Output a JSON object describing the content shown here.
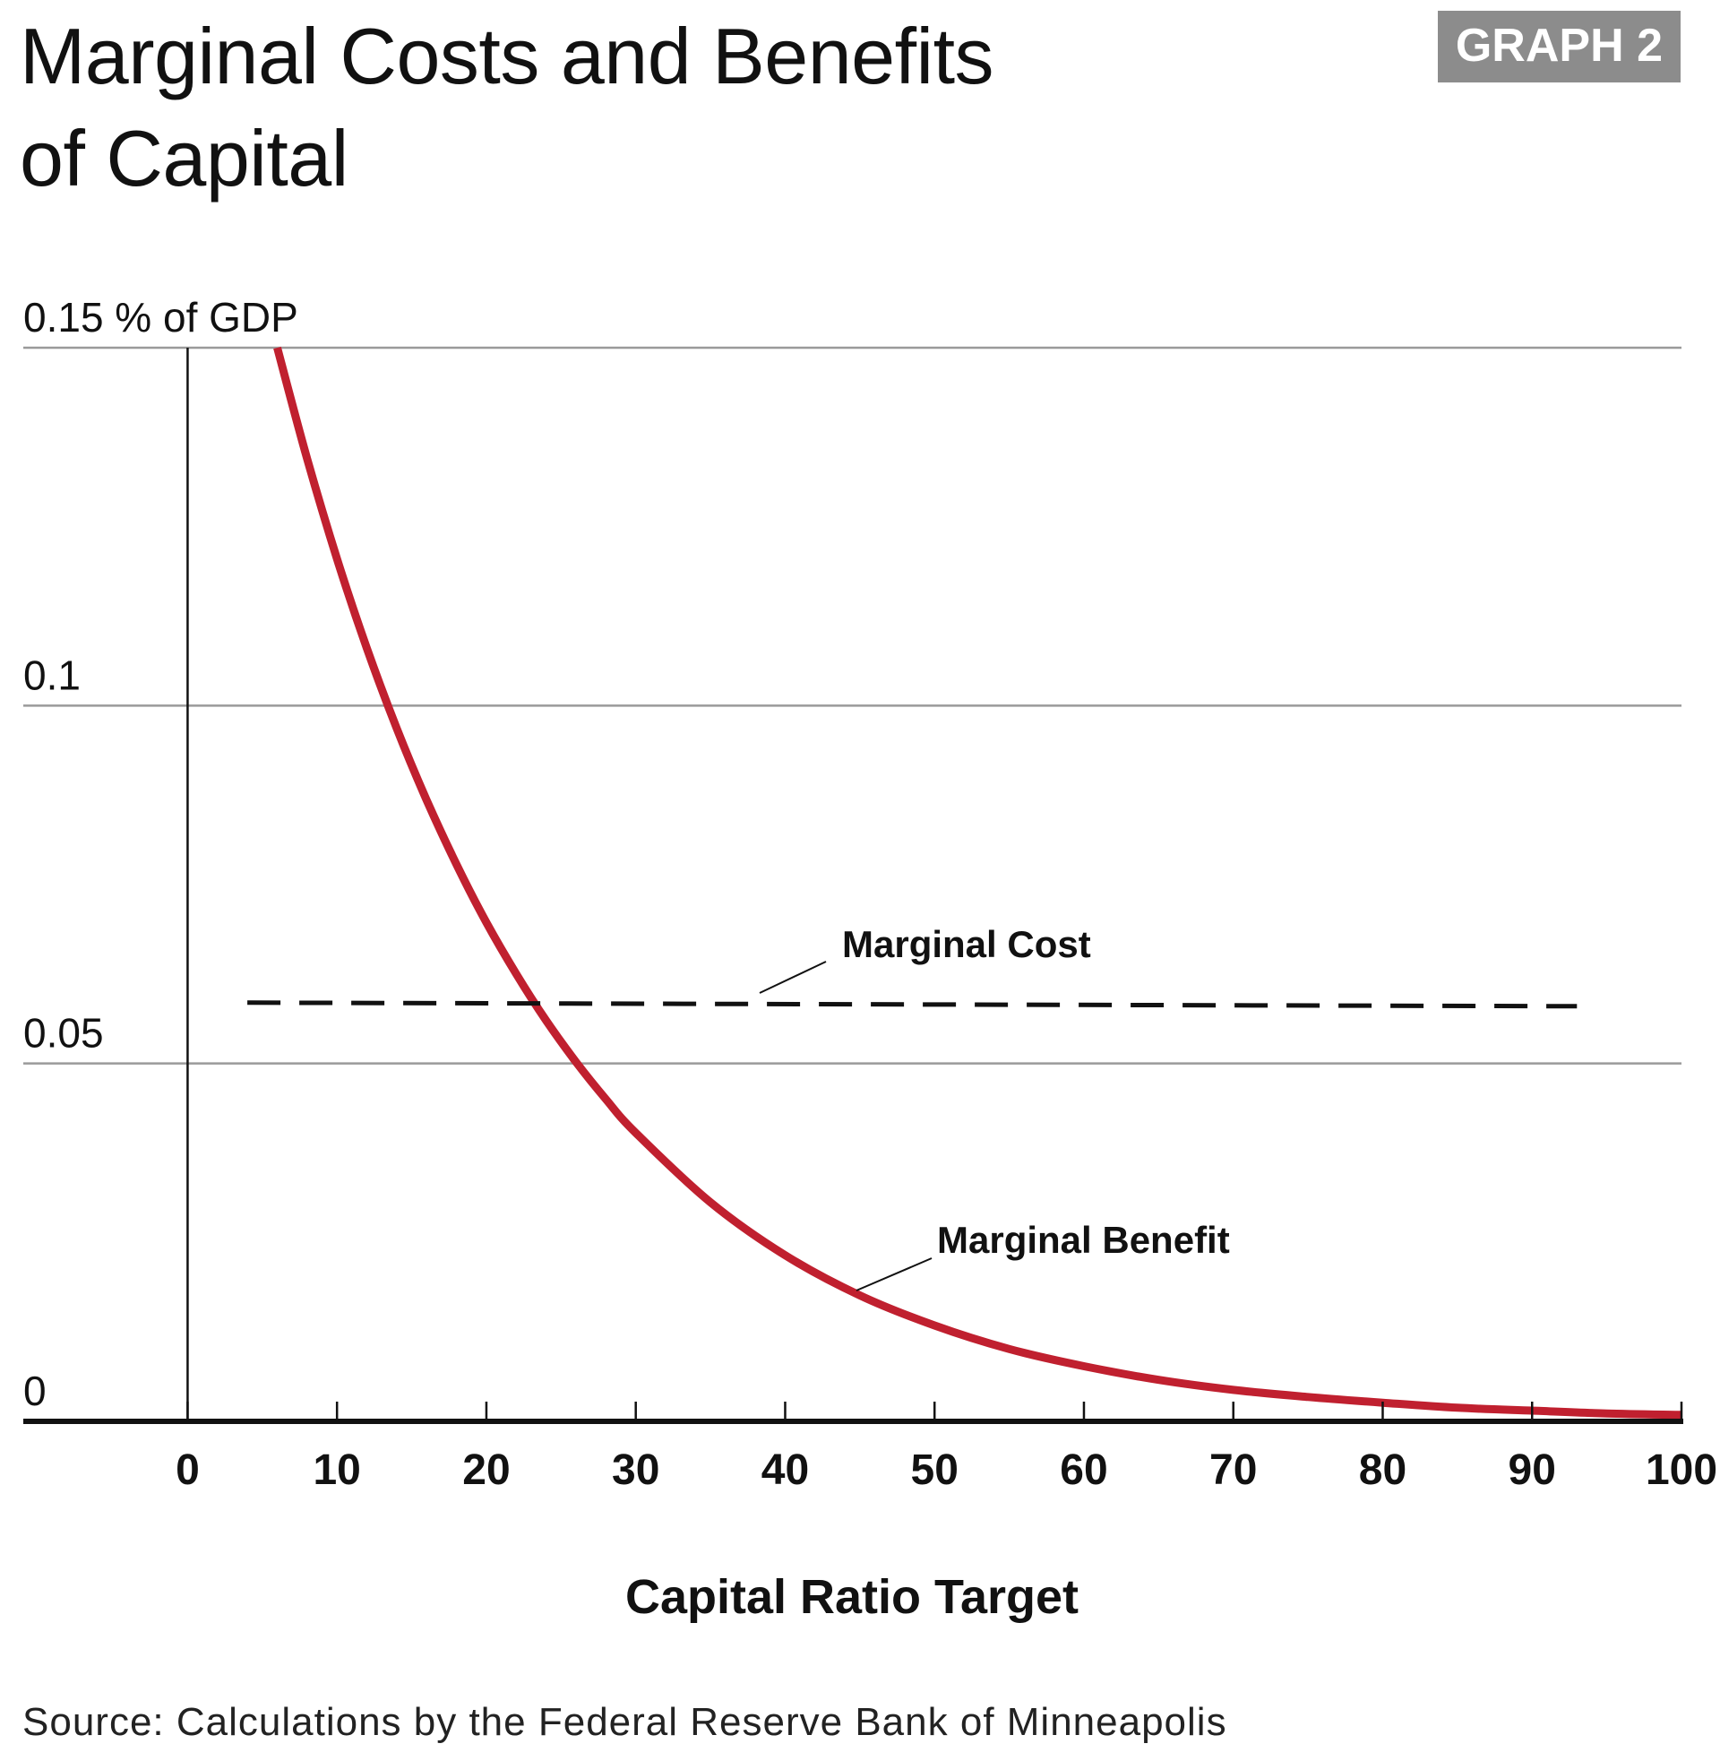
{
  "header": {
    "title_line1": "Marginal Costs and Benefits",
    "title_line2": "of Capital",
    "badge": "GRAPH 2"
  },
  "footer": {
    "source": "Source: Calculations by the Federal Reserve Bank of Minneapolis"
  },
  "colors": {
    "benefit": "#c0202f",
    "cost": "#111111",
    "grid": "#9a9a9a",
    "badge_bg": "#8c8c8c"
  },
  "chart_data": {
    "type": "line",
    "title": "Marginal Costs and Benefits of Capital",
    "xlabel": "Capital Ratio Target",
    "ylabel": "% of GDP",
    "xlim": [
      -11,
      100
    ],
    "ylim": [
      0,
      0.15
    ],
    "x_ticks": [
      0,
      10,
      20,
      30,
      40,
      50,
      60,
      70,
      80,
      90,
      100
    ],
    "x_tick_labels": [
      "0",
      "10",
      "20",
      "30",
      "40",
      "50",
      "60",
      "70",
      "80",
      "90",
      "100"
    ],
    "y_ticks": [
      0,
      0.05,
      0.1,
      0.15
    ],
    "y_tick_labels": [
      "0",
      "0.05",
      "0.1",
      "0.15 % of GDP"
    ],
    "grid": "horizontal",
    "series": [
      {
        "name": "Marginal Benefit",
        "style": "solid",
        "x": [
          6,
          8,
          10,
          12,
          14,
          16,
          18,
          20,
          22,
          24,
          26,
          28,
          30,
          35,
          40,
          45,
          50,
          55,
          60,
          65,
          70,
          75,
          80,
          85,
          90,
          95,
          100
        ],
        "y": [
          0.15,
          0.1345,
          0.1205,
          0.108,
          0.0968,
          0.0868,
          0.0778,
          0.0697,
          0.0625,
          0.056,
          0.0502,
          0.045,
          0.0403,
          0.0306,
          0.0232,
          0.0176,
          0.0134,
          0.0101,
          0.0077,
          0.0058,
          0.0044,
          0.0034,
          0.0026,
          0.0019,
          0.0015,
          0.0011,
          0.0009
        ]
      },
      {
        "name": "Marginal Cost",
        "style": "dashed",
        "x": [
          4,
          93
        ],
        "y": [
          0.0585,
          0.058
        ]
      }
    ],
    "annotations": [
      "Marginal Cost",
      "Marginal Benefit"
    ]
  }
}
